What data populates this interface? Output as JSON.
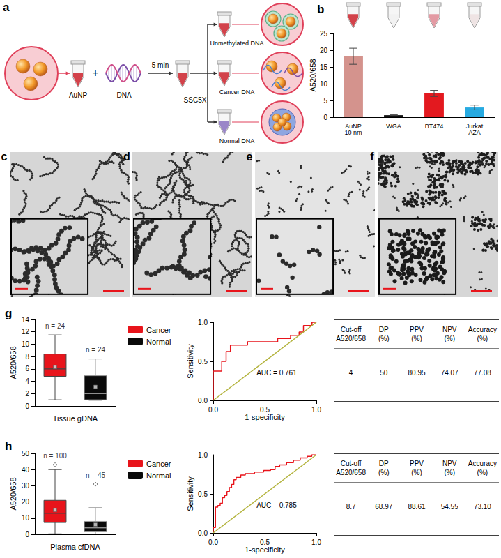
{
  "schematic": {
    "label": "a",
    "texts": {
      "particles": "AuNP",
      "plus": "+",
      "dna": "DNA",
      "time": "5 min",
      "buffer": "SSC5X",
      "outcomes": [
        "Unmethylated DNA",
        "Cancer DNA",
        "Normal DNA"
      ]
    }
  },
  "images": {
    "labels": [
      "c",
      "d",
      "e",
      "f"
    ]
  },
  "chart_data": [
    {
      "type": "bar",
      "title": "b",
      "categories": [
        "AuNP\n10 nm",
        "WGA",
        "BT474",
        "Jurkat\nAZA"
      ],
      "values": [
        18.2,
        0.6,
        7.1,
        2.9
      ],
      "error": [
        2.4,
        0.1,
        0.9,
        0.7
      ],
      "colors": [
        "#d4938d",
        "#111111",
        "#e3191f",
        "#27aae1"
      ],
      "y_label": "A520/658",
      "ylim": [
        0,
        25
      ],
      "yticks": [
        0,
        5,
        10,
        15,
        20,
        25
      ]
    },
    {
      "type": "box",
      "title": "g",
      "x_label": "Tissue gDNA",
      "y_label": "A520/658",
      "ylim": [
        0,
        14
      ],
      "yticks": [
        0,
        2,
        4,
        6,
        8,
        10,
        12,
        14
      ],
      "legend": "right",
      "tick_labels": "y",
      "series": [
        {
          "name": "Cancer",
          "color": "#e8141b",
          "values": [
            1.0,
            4.8,
            6.0,
            8.4,
            11.5
          ],
          "mean": 6.3,
          "annotation": "n = 24"
        },
        {
          "name": "Normal",
          "color": "#0a0a0a",
          "values": [
            0.9,
            1.0,
            2.0,
            4.9,
            7.6
          ],
          "mean": 3.1,
          "annotation": "n = 24"
        }
      ]
    },
    {
      "type": "line",
      "x_label": "1-specificity",
      "y_label": "Sensitivity",
      "xlim": [
        0,
        1
      ],
      "ylim": [
        0,
        1
      ],
      "xticks": [
        {
          "value": 0,
          "label": "0.0"
        },
        {
          "value": 0.5,
          "label": "0.5"
        },
        {
          "value": 1,
          "label": "1.0"
        }
      ],
      "yticks": [
        {
          "value": 0,
          "label": "0.0"
        },
        {
          "value": 0.5,
          "label": "0.5"
        },
        {
          "value": 1,
          "label": "1.0"
        }
      ],
      "annotation": "AUC = 0.761",
      "series": [
        {
          "color": "#e8141b",
          "values": [
            [
              0,
              0
            ],
            [
              0,
              0.375
            ],
            [
              0.083,
              0.375
            ],
            [
              0.083,
              0.5
            ],
            [
              0.125,
              0.5
            ],
            [
              0.125,
              0.625
            ],
            [
              0.167,
              0.625
            ],
            [
              0.167,
              0.708
            ],
            [
              0.333,
              0.708
            ],
            [
              0.333,
              0.75
            ],
            [
              0.625,
              0.75
            ],
            [
              0.625,
              0.792
            ],
            [
              0.75,
              0.792
            ],
            [
              0.75,
              0.833
            ],
            [
              0.833,
              0.833
            ],
            [
              0.833,
              0.875
            ],
            [
              0.875,
              0.875
            ],
            [
              0.875,
              0.958
            ],
            [
              0.958,
              0.958
            ],
            [
              0.958,
              1
            ],
            [
              1,
              1
            ]
          ]
        },
        {
          "color": "#b3b33c",
          "values": [
            [
              0,
              0
            ],
            [
              1,
              1
            ]
          ]
        }
      ]
    },
    {
      "type": "box",
      "title": "h",
      "x_label": "Plasma cfDNA",
      "y_label": "A520/658",
      "ylim": [
        0,
        50
      ],
      "yticks": [
        0,
        10,
        20,
        30,
        40,
        50
      ],
      "legend": "right",
      "tick_labels": "y",
      "series": [
        {
          "name": "Cancer",
          "color": "#e8141b",
          "values": [
            0.3,
            7.3,
            13.0,
            21.0,
            40.0
          ],
          "mean": 15.0,
          "outliers": [
            43.0
          ],
          "annotation": "n = 100"
        },
        {
          "name": "Normal",
          "color": "#0a0a0a",
          "values": [
            0.2,
            1.5,
            4.0,
            8.0,
            16.5
          ],
          "mean": 6.0,
          "outliers": [
            31.0
          ],
          "annotation": "n = 45"
        }
      ]
    },
    {
      "type": "line",
      "x_label": "1-specificity",
      "y_label": "Sensitivity",
      "xlim": [
        0,
        1
      ],
      "ylim": [
        0,
        1
      ],
      "xticks": [
        {
          "value": 0,
          "label": "0.0"
        },
        {
          "value": 0.5,
          "label": "0.5"
        },
        {
          "value": 1,
          "label": "1.0"
        }
      ],
      "yticks": [
        {
          "value": 0,
          "label": "0.0"
        },
        {
          "value": 0.5,
          "label": "0.5"
        },
        {
          "value": 1,
          "label": "1.0"
        }
      ],
      "annotation": "AUC = 0.785",
      "series": [
        {
          "color": "#e8141b",
          "values": [
            [
              0,
              0
            ],
            [
              0,
              0.07
            ],
            [
              0.022,
              0.07
            ],
            [
              0.022,
              0.33
            ],
            [
              0.044,
              0.33
            ],
            [
              0.044,
              0.35
            ],
            [
              0.067,
              0.35
            ],
            [
              0.067,
              0.38
            ],
            [
              0.089,
              0.38
            ],
            [
              0.089,
              0.45
            ],
            [
              0.111,
              0.45
            ],
            [
              0.111,
              0.48
            ],
            [
              0.133,
              0.48
            ],
            [
              0.133,
              0.53
            ],
            [
              0.156,
              0.53
            ],
            [
              0.156,
              0.58
            ],
            [
              0.178,
              0.58
            ],
            [
              0.178,
              0.62
            ],
            [
              0.2,
              0.62
            ],
            [
              0.2,
              0.68
            ],
            [
              0.222,
              0.68
            ],
            [
              0.222,
              0.71
            ],
            [
              0.267,
              0.71
            ],
            [
              0.267,
              0.74
            ],
            [
              0.311,
              0.74
            ],
            [
              0.311,
              0.76
            ],
            [
              0.4,
              0.76
            ],
            [
              0.4,
              0.78
            ],
            [
              0.489,
              0.78
            ],
            [
              0.489,
              0.8
            ],
            [
              0.556,
              0.8
            ],
            [
              0.556,
              0.81
            ],
            [
              0.6,
              0.81
            ],
            [
              0.6,
              0.85
            ],
            [
              0.644,
              0.85
            ],
            [
              0.644,
              0.87
            ],
            [
              0.711,
              0.87
            ],
            [
              0.711,
              0.9
            ],
            [
              0.778,
              0.9
            ],
            [
              0.778,
              0.93
            ],
            [
              0.844,
              0.93
            ],
            [
              0.844,
              0.96
            ],
            [
              0.911,
              0.96
            ],
            [
              0.911,
              0.98
            ],
            [
              0.956,
              0.98
            ],
            [
              0.956,
              1
            ],
            [
              1,
              1
            ]
          ]
        },
        {
          "color": "#b3b33c",
          "values": [
            [
              0,
              0
            ],
            [
              1,
              1
            ]
          ]
        }
      ]
    }
  ],
  "tables": [
    {
      "header": [
        [
          "Cut-off",
          "A520/658"
        ],
        [
          "DP",
          "(%)"
        ],
        [
          "PPV",
          "(%)"
        ],
        [
          "NPV",
          "(%)"
        ],
        [
          "Accuracy",
          "(%)"
        ]
      ],
      "rows": [
        [
          "4",
          "50",
          "80.95",
          "74.07",
          "77.08"
        ]
      ]
    },
    {
      "header": [
        [
          "Cut-off",
          "A520/658"
        ],
        [
          "DP",
          "(%)"
        ],
        [
          "PPV",
          "(%)"
        ],
        [
          "NPV",
          "(%)"
        ],
        [
          "Accuracy",
          "(%)"
        ]
      ],
      "rows": [
        [
          "8.7",
          "68.97",
          "88.61",
          "54.55",
          "73.10"
        ]
      ]
    }
  ]
}
